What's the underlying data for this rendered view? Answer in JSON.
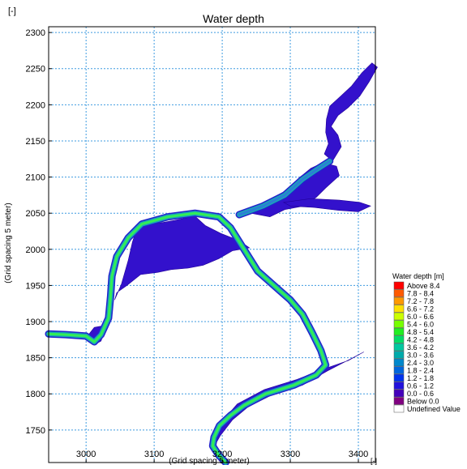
{
  "chart_data": {
    "type": "heatmap",
    "title": "Water depth",
    "xlabel": "(Grid spacing 5 meter)",
    "ylabel": "(Grid spacing 5 meter)",
    "x_unit": "[-]",
    "y_unit": "[-]",
    "xlim": [
      2945,
      3425
    ],
    "ylim": [
      1705,
      2308
    ],
    "x_ticks": [
      3000,
      3100,
      3200,
      3300,
      3400
    ],
    "y_ticks": [
      1750,
      1800,
      1850,
      1900,
      1950,
      2000,
      2050,
      2100,
      2150,
      2200,
      2250,
      2300
    ],
    "grid": true,
    "legend": {
      "title": "Water depth [m]",
      "placement": "right",
      "entries": [
        {
          "label": "Above 8.4",
          "color": "#ff0000"
        },
        {
          "label": "7.8 - 8.4",
          "color": "#ff5a00"
        },
        {
          "label": "7.2 - 7.8",
          "color": "#ff9900"
        },
        {
          "label": "6.6 - 7.2",
          "color": "#ffe000"
        },
        {
          "label": "6.0 - 6.6",
          "color": "#ccff00"
        },
        {
          "label": "5.4 - 6.0",
          "color": "#77ff00"
        },
        {
          "label": "4.8 - 5.4",
          "color": "#22ee22"
        },
        {
          "label": "4.2 - 4.8",
          "color": "#00dd66"
        },
        {
          "label": "3.6 - 4.2",
          "color": "#00c8a0"
        },
        {
          "label": "3.0 - 3.6",
          "color": "#00aaaa"
        },
        {
          "label": "2.4 - 3.0",
          "color": "#0088cc"
        },
        {
          "label": "1.8 - 2.4",
          "color": "#0066dd"
        },
        {
          "label": "1.2 - 1.8",
          "color": "#0033ee"
        },
        {
          "label": "0.6 - 1.2",
          "color": "#2211dd"
        },
        {
          "label": "0.0 - 0.6",
          "color": "#4400bb"
        },
        {
          "label": "Below 0.0",
          "color": "#800080"
        },
        {
          "label": "Undefined Value",
          "color": "#ffffff"
        }
      ]
    },
    "series": [
      {
        "kind": "channel",
        "color": "#33ee55",
        "points": [
          [
            3205,
            1705
          ],
          [
            3195,
            1715
          ],
          [
            3186,
            1728
          ],
          [
            3188,
            1740
          ],
          [
            3196,
            1756
          ],
          [
            3212,
            1770
          ],
          [
            3232,
            1784
          ],
          [
            3264,
            1800
          ],
          [
            3305,
            1812
          ],
          [
            3338,
            1826
          ],
          [
            3352,
            1840
          ],
          [
            3345,
            1860
          ],
          [
            3332,
            1885
          ],
          [
            3318,
            1910
          ],
          [
            3300,
            1930
          ],
          [
            3282,
            1945
          ],
          [
            3252,
            1970
          ],
          [
            3230,
            2003
          ],
          [
            3212,
            2030
          ],
          [
            3195,
            2045
          ],
          [
            3160,
            2050
          ],
          [
            3120,
            2045
          ],
          [
            3082,
            2035
          ],
          [
            3062,
            2016
          ],
          [
            3045,
            1990
          ],
          [
            3038,
            1963
          ],
          [
            3036,
            1935
          ],
          [
            3033,
            1905
          ],
          [
            3022,
            1882
          ],
          [
            3012,
            1872
          ],
          [
            3000,
            1880
          ],
          [
            2970,
            1882
          ],
          [
            2945,
            1883
          ]
        ]
      },
      {
        "kind": "channel",
        "color": "#2a7fd4",
        "points": [
          [
            3225,
            2048
          ],
          [
            3260,
            2060
          ],
          [
            3292,
            2075
          ],
          [
            3318,
            2097
          ],
          [
            3338,
            2110
          ],
          [
            3358,
            2122
          ]
        ]
      },
      {
        "kind": "shallow",
        "color": "#3311cc",
        "points": [
          [
            3075,
            2030
          ],
          [
            3100,
            2035
          ],
          [
            3130,
            2040
          ],
          [
            3160,
            2046
          ],
          [
            3175,
            2033
          ],
          [
            3198,
            2022
          ],
          [
            3225,
            2012
          ],
          [
            3240,
            2002
          ],
          [
            3215,
            1998
          ],
          [
            3195,
            1987
          ],
          [
            3172,
            1978
          ],
          [
            3150,
            1974
          ],
          [
            3125,
            1972
          ],
          [
            3105,
            1968
          ],
          [
            3080,
            1965
          ],
          [
            3060,
            1950
          ],
          [
            3045,
            1940
          ],
          [
            3042,
            1930
          ],
          [
            3052,
            1952
          ],
          [
            3062,
            1985
          ],
          [
            3068,
            2010
          ]
        ]
      },
      {
        "kind": "shallow",
        "color": "#3311cc",
        "points": [
          [
            3242,
            2050
          ],
          [
            3270,
            2045
          ],
          [
            3292,
            2055
          ],
          [
            3320,
            2060
          ],
          [
            3338,
            2072
          ],
          [
            3352,
            2085
          ],
          [
            3372,
            2102
          ],
          [
            3368,
            2115
          ],
          [
            3348,
            2120
          ],
          [
            3330,
            2112
          ],
          [
            3312,
            2098
          ],
          [
            3295,
            2082
          ],
          [
            3272,
            2070
          ],
          [
            3250,
            2060
          ]
        ]
      },
      {
        "kind": "shallow",
        "color": "#3311cc",
        "points": [
          [
            3362,
            2122
          ],
          [
            3375,
            2142
          ],
          [
            3370,
            2158
          ],
          [
            3360,
            2170
          ],
          [
            3370,
            2185
          ],
          [
            3385,
            2196
          ],
          [
            3402,
            2212
          ],
          [
            3416,
            2232
          ],
          [
            3428,
            2252
          ],
          [
            3420,
            2258
          ],
          [
            3405,
            2244
          ],
          [
            3390,
            2226
          ],
          [
            3374,
            2212
          ],
          [
            3358,
            2198
          ],
          [
            3353,
            2180
          ],
          [
            3352,
            2162
          ],
          [
            3356,
            2146
          ],
          [
            3350,
            2132
          ]
        ]
      },
      {
        "kind": "shallow",
        "color": "#3311cc",
        "points": [
          [
            3290,
            2065
          ],
          [
            3330,
            2070
          ],
          [
            3372,
            2068
          ],
          [
            3402,
            2065
          ],
          [
            3418,
            2060
          ],
          [
            3400,
            2052
          ],
          [
            3370,
            2054
          ],
          [
            3335,
            2058
          ],
          [
            3300,
            2060
          ]
        ]
      },
      {
        "kind": "shallow",
        "color": "#3311cc",
        "points": [
          [
            3185,
            1722
          ],
          [
            3190,
            1748
          ],
          [
            3200,
            1762
          ],
          [
            3222,
            1786
          ],
          [
            3262,
            1806
          ],
          [
            3310,
            1820
          ],
          [
            3348,
            1834
          ],
          [
            3385,
            1846
          ],
          [
            3408,
            1858
          ],
          [
            3392,
            1850
          ],
          [
            3355,
            1832
          ],
          [
            3318,
            1812
          ],
          [
            3272,
            1798
          ],
          [
            3238,
            1782
          ],
          [
            3215,
            1764
          ],
          [
            3197,
            1742
          ]
        ]
      },
      {
        "kind": "shallow",
        "color": "#3311cc",
        "points": [
          [
            3002,
            1880
          ],
          [
            3012,
            1868
          ],
          [
            3022,
            1873
          ],
          [
            3030,
            1895
          ],
          [
            3012,
            1892
          ]
        ]
      }
    ]
  }
}
